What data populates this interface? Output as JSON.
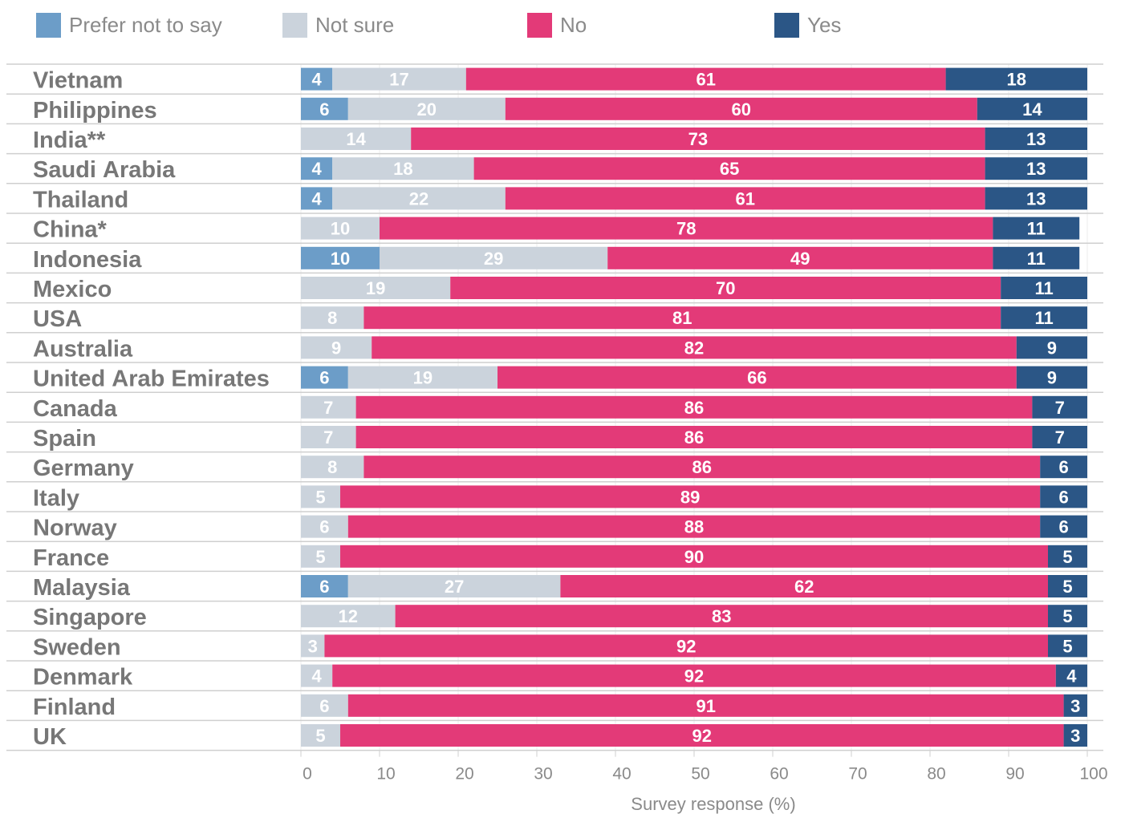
{
  "chart_data": {
    "type": "bar",
    "orientation": "horizontal",
    "stacked": true,
    "xlabel": "Survey response (%)",
    "ylabel": "",
    "xlim": [
      0,
      100
    ],
    "xticks": [
      0,
      10,
      20,
      30,
      40,
      50,
      60,
      70,
      80,
      90,
      100
    ],
    "grid": true,
    "legend_position": "top",
    "categories": [
      "Vietnam",
      "Philippines",
      "India**",
      "Saudi Arabia",
      "Thailand",
      "China*",
      "Indonesia",
      "Mexico",
      "USA",
      "Australia",
      "United Arab Emirates",
      "Canada",
      "Spain",
      "Germany",
      "Italy",
      "Norway",
      "France",
      "Malaysia",
      "Singapore",
      "Sweden",
      "Denmark",
      "Finland",
      "UK"
    ],
    "series": [
      {
        "name": "Prefer not to say",
        "color": "#6c9dc8",
        "values": [
          4,
          6,
          0,
          4,
          4,
          0,
          10,
          0,
          0,
          0,
          6,
          0,
          0,
          0,
          0,
          0,
          0,
          6,
          0,
          0,
          0,
          0,
          0
        ]
      },
      {
        "name": "Not sure",
        "color": "#cbd3dc",
        "values": [
          17,
          20,
          14,
          18,
          22,
          10,
          29,
          19,
          8,
          9,
          19,
          7,
          7,
          8,
          5,
          6,
          5,
          27,
          12,
          3,
          4,
          6,
          5
        ]
      },
      {
        "name": "No",
        "color": "#e33a78",
        "values": [
          61,
          60,
          73,
          65,
          61,
          78,
          49,
          70,
          81,
          82,
          66,
          86,
          86,
          86,
          89,
          88,
          90,
          62,
          83,
          92,
          92,
          91,
          92
        ]
      },
      {
        "name": "Yes",
        "color": "#2b5686",
        "values": [
          18,
          14,
          13,
          13,
          13,
          11,
          11,
          11,
          11,
          9,
          9,
          7,
          7,
          6,
          6,
          6,
          5,
          5,
          5,
          5,
          4,
          3,
          3
        ]
      }
    ]
  }
}
